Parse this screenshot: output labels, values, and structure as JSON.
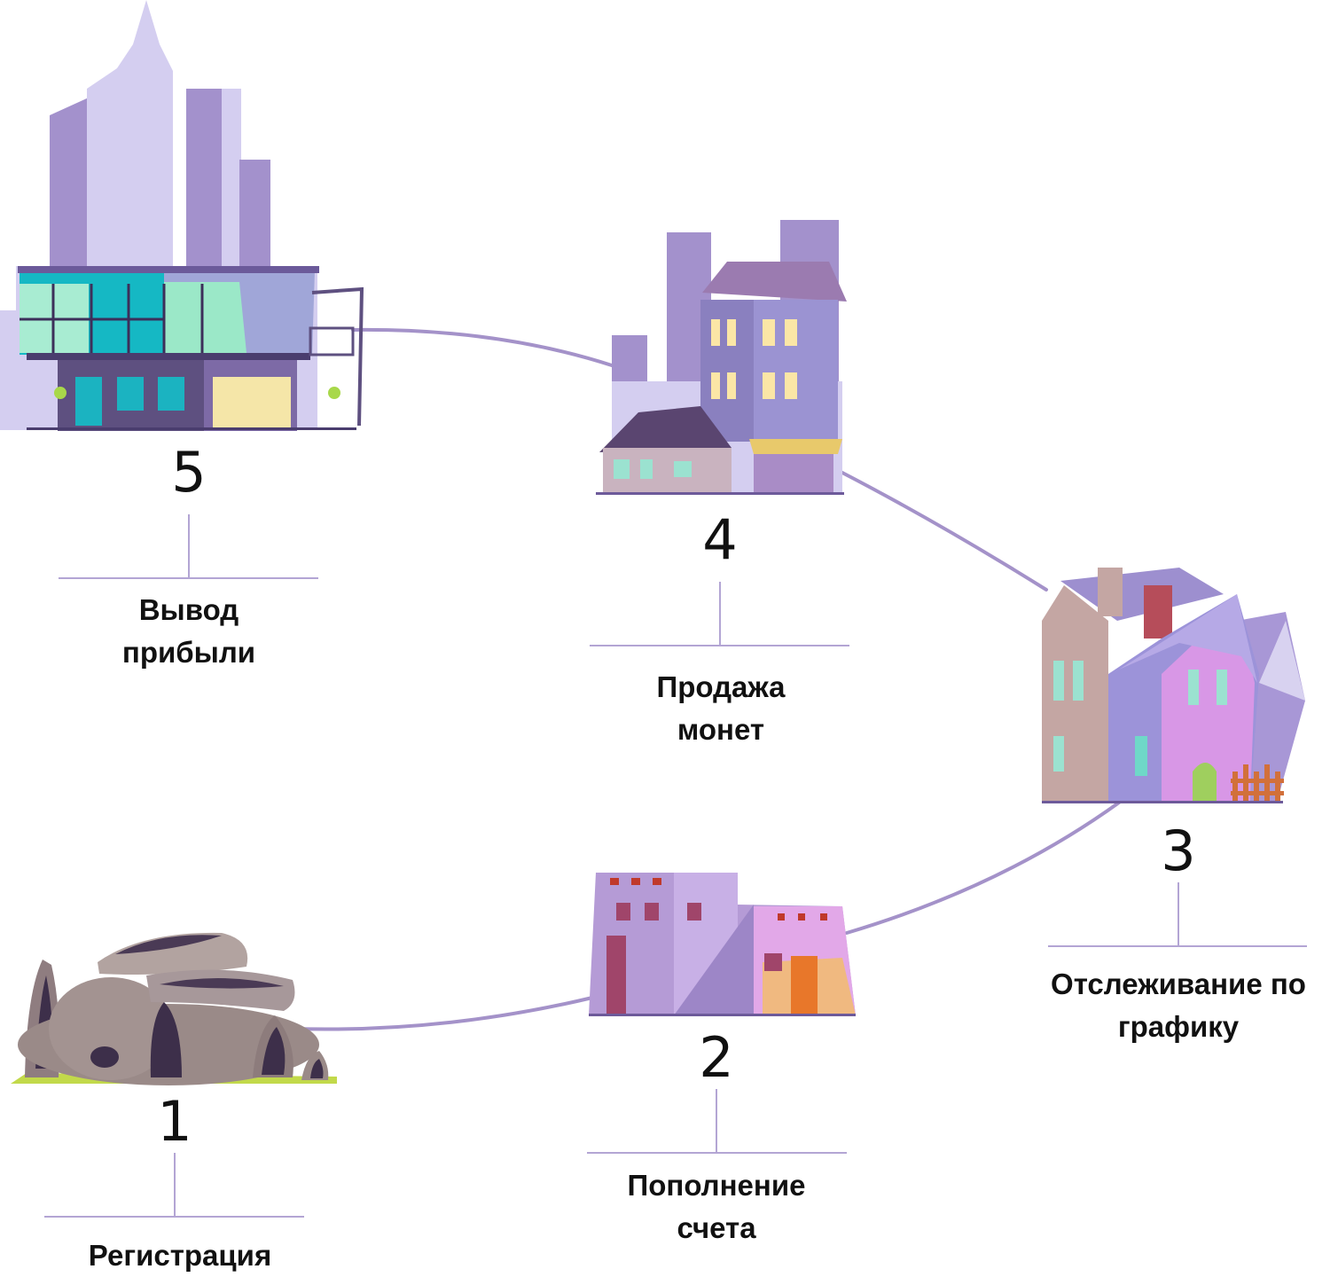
{
  "colors": {
    "accent": "#a492c9",
    "building_dark": "#8b7cc0",
    "building_light": "#c9bfe6",
    "glass": "#1bb3c1"
  },
  "steps": [
    {
      "number": "1",
      "label_lines": [
        "Регистрация"
      ],
      "icon": "cave-rock-icon"
    },
    {
      "number": "2",
      "label_lines": [
        "Пополнение",
        "счета"
      ],
      "icon": "adobe-house-icon"
    },
    {
      "number": "3",
      "label_lines": [
        "Отслеживание по",
        "графику"
      ],
      "icon": "cottage-houses-icon"
    },
    {
      "number": "4",
      "label_lines": [
        "Продажа",
        "монет"
      ],
      "icon": "townhouse-building-icon"
    },
    {
      "number": "5",
      "label_lines": [
        "Вывод",
        "прибыли"
      ],
      "icon": "modern-office-skyline-icon"
    }
  ]
}
